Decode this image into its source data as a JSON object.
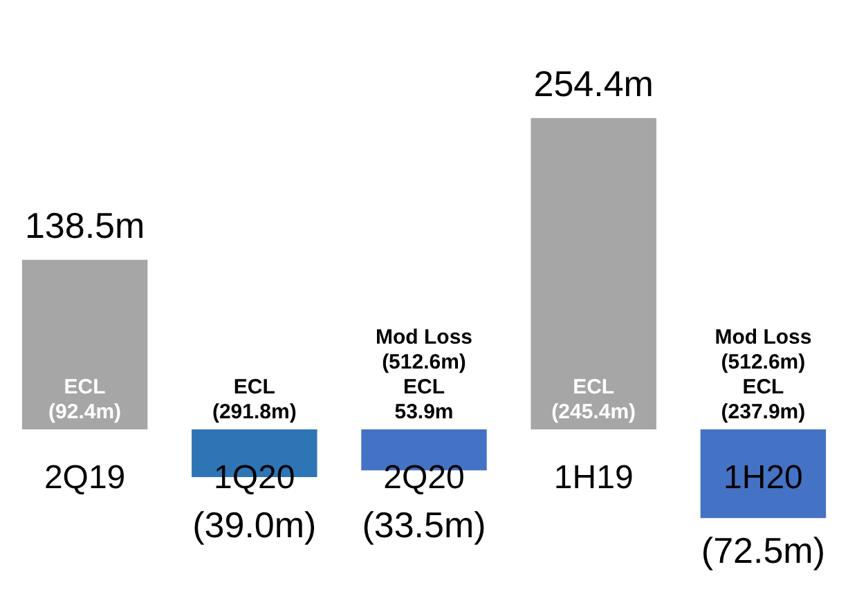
{
  "chart_data": {
    "type": "bar",
    "categories": [
      "2Q19",
      "1Q20",
      "2Q20",
      "1H19",
      "1H20"
    ],
    "values": [
      138.5,
      -39.0,
      -33.5,
      254.4,
      -72.5
    ],
    "colors": [
      "#a6a6a6",
      "#2e75b6",
      "#4472c4",
      "#a6a6a6",
      "#4472c4"
    ],
    "value_labels": [
      "138.5m",
      "(39.0m)",
      "(33.5m)",
      "254.4m",
      "(72.5m)"
    ],
    "annotations": [
      {
        "text": "ECL\n(92.4m)",
        "x": "2Q19",
        "y": 5
      },
      {
        "text": "ECL\n(291.8m)",
        "x": "1Q20",
        "y": 5
      },
      {
        "text": "Mod Loss\n(512.6m)\nECL\n53.9m",
        "x": "2Q20",
        "y": 5
      },
      {
        "text": "ECL\n(245.4m)",
        "x": "1H19",
        "y": 5
      },
      {
        "text": "Mod Loss\n(512.6m)\nECL\n(237.9m)",
        "x": "1H20",
        "y": 5
      }
    ]
  }
}
